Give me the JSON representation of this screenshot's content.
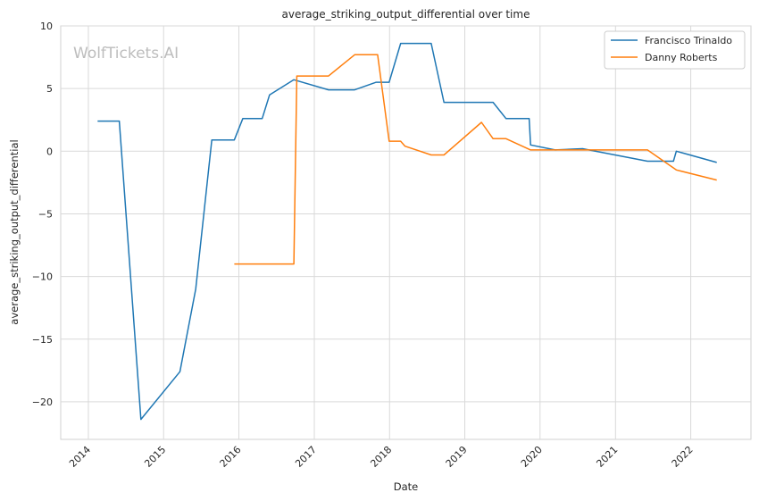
{
  "chart_data": {
    "type": "line",
    "title": "average_striking_output_differential over time",
    "xlabel": "Date",
    "ylabel": "average_striking_output_differential",
    "watermark": "WolfTickets.AI",
    "xlim": [
      "2013-08-20",
      "2022-10-20"
    ],
    "ylim": [
      -23,
      10
    ],
    "x_ticks": [
      {
        "label": "2014",
        "date": "2014-01-01"
      },
      {
        "label": "2015",
        "date": "2015-01-01"
      },
      {
        "label": "2016",
        "date": "2016-01-01"
      },
      {
        "label": "2017",
        "date": "2017-01-01"
      },
      {
        "label": "2018",
        "date": "2018-01-01"
      },
      {
        "label": "2019",
        "date": "2019-01-01"
      },
      {
        "label": "2020",
        "date": "2020-01-01"
      },
      {
        "label": "2021",
        "date": "2021-01-01"
      },
      {
        "label": "2022",
        "date": "2022-01-01"
      }
    ],
    "y_ticks": [
      {
        "label": "10",
        "value": 10
      },
      {
        "label": "5",
        "value": 5
      },
      {
        "label": "0",
        "value": 0
      },
      {
        "label": "−5",
        "value": -5
      },
      {
        "label": "−10",
        "value": -10
      },
      {
        "label": "−15",
        "value": -15
      },
      {
        "label": "−20",
        "value": -20
      }
    ],
    "grid": true,
    "legend_position": "top-right",
    "series": [
      {
        "name": "Francisco Trinaldo",
        "color": "#1f77b4",
        "points": [
          [
            "2014-02-15",
            2.4
          ],
          [
            "2014-05-31",
            2.4
          ],
          [
            "2014-09-13",
            -21.4
          ],
          [
            "2015-03-21",
            -17.6
          ],
          [
            "2015-06-06",
            -11.0
          ],
          [
            "2015-08-23",
            0.9
          ],
          [
            "2015-12-10",
            0.9
          ],
          [
            "2016-01-20",
            2.6
          ],
          [
            "2016-04-23",
            2.6
          ],
          [
            "2016-05-29",
            4.5
          ],
          [
            "2016-09-24",
            5.7
          ],
          [
            "2017-03-11",
            4.9
          ],
          [
            "2017-07-16",
            4.9
          ],
          [
            "2017-10-28",
            5.5
          ],
          [
            "2017-12-30",
            5.5
          ],
          [
            "2018-02-24",
            8.6
          ],
          [
            "2018-07-22",
            8.6
          ],
          [
            "2018-09-22",
            3.9
          ],
          [
            "2019-05-18",
            3.9
          ],
          [
            "2019-07-20",
            2.6
          ],
          [
            "2019-11-09",
            2.6
          ],
          [
            "2019-11-16",
            0.5
          ],
          [
            "2020-03-14",
            0.1
          ],
          [
            "2020-07-25",
            0.2
          ],
          [
            "2021-06-05",
            -0.8
          ],
          [
            "2021-10-09",
            -0.8
          ],
          [
            "2021-10-23",
            0.0
          ],
          [
            "2022-05-07",
            -0.9
          ]
        ]
      },
      {
        "name": "Danny Roberts",
        "color": "#ff7f0e",
        "points": [
          [
            "2015-12-10",
            -9.0
          ],
          [
            "2016-09-24",
            -9.0
          ],
          [
            "2016-10-08",
            6.0
          ],
          [
            "2017-03-11",
            6.0
          ],
          [
            "2017-07-16",
            7.7
          ],
          [
            "2017-11-04",
            7.7
          ],
          [
            "2017-12-30",
            0.8
          ],
          [
            "2018-02-24",
            0.8
          ],
          [
            "2018-03-17",
            0.4
          ],
          [
            "2018-07-22",
            -0.3
          ],
          [
            "2018-09-22",
            -0.3
          ],
          [
            "2019-03-23",
            2.3
          ],
          [
            "2019-05-18",
            1.0
          ],
          [
            "2019-07-20",
            1.0
          ],
          [
            "2019-11-16",
            0.1
          ],
          [
            "2021-06-05",
            0.1
          ],
          [
            "2021-10-23",
            -1.5
          ],
          [
            "2022-05-07",
            -2.3
          ]
        ]
      }
    ]
  }
}
